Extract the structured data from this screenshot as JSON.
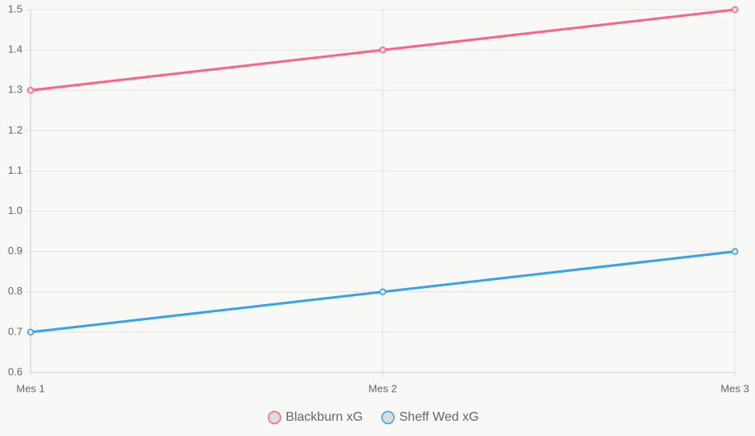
{
  "chart_data": {
    "type": "line",
    "categories": [
      "Mes 1",
      "Mes 2",
      "Mes 3"
    ],
    "series": [
      {
        "name": "Blackburn xG",
        "color": "#ff6384",
        "values": [
          1.3,
          1.4,
          1.5
        ]
      },
      {
        "name": "Sheff Wed xG",
        "color": "#36a2eb",
        "values": [
          0.7,
          0.8,
          0.9
        ]
      }
    ],
    "ylim": [
      0.6,
      1.5
    ],
    "yticks": [
      0.6,
      0.7,
      0.8,
      0.9,
      {
        "value": 1,
        "label": "1.0"
      },
      1.1,
      1.2,
      1.3,
      1.4,
      1.5
    ],
    "grid": true,
    "legend": "bottom"
  }
}
